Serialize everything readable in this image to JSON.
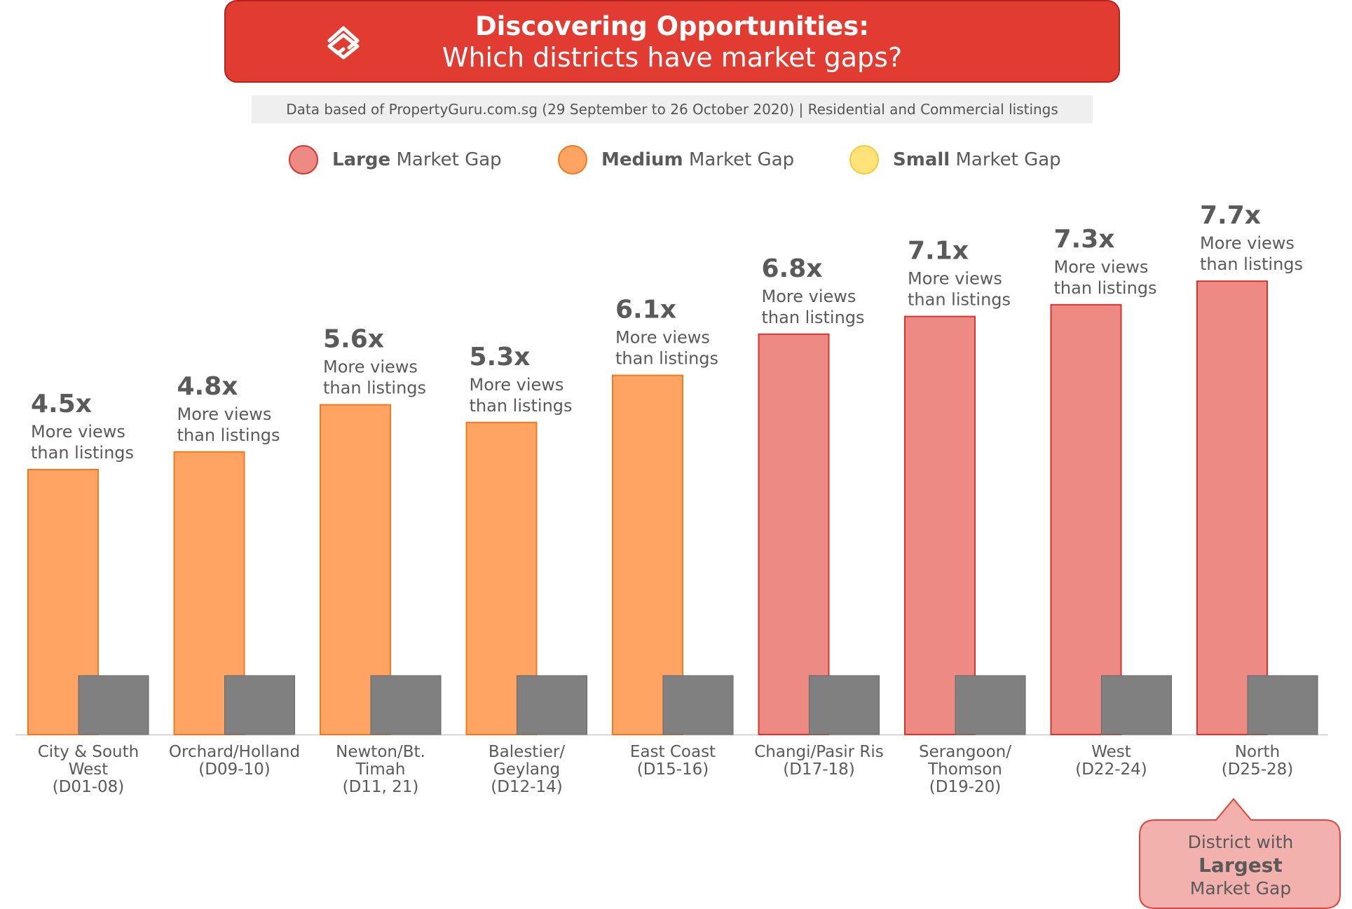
{
  "header": {
    "title": "Discovering Opportunities:",
    "subtitle": "Which districts have market gaps?",
    "logo_icon": "propertyguru-logo-icon",
    "color": "#e23c32"
  },
  "source_note": "Data based of PropertyGuru.com.sg (29 September to 26 October 2020) | Residential and Commercial listings",
  "legend": [
    {
      "strong": "Large",
      "rest": " Market Gap",
      "color": "#ee8a84"
    },
    {
      "strong": "Medium",
      "rest": " Market Gap",
      "color": "#ffa462"
    },
    {
      "strong": "Small",
      "rest": " Market Gap",
      "color": "#ffe27a"
    }
  ],
  "callout": {
    "line1": "District with",
    "line2": "Largest",
    "line3": "Market Gap"
  },
  "chart_data": {
    "type": "bar",
    "unit_suffix": "x",
    "value_caption": [
      "More views",
      "than listings"
    ],
    "categories": [
      [
        "City & South",
        "West",
        "(D01-08)"
      ],
      [
        "Orchard/Holland",
        "(D09-10)"
      ],
      [
        "Newton/Bt.",
        "Timah",
        "(D11, 21)"
      ],
      [
        "Balestier/",
        "Geylang",
        "(D12-14)"
      ],
      [
        "East Coast",
        "(D15-16)"
      ],
      [
        "Changi/Pasir Ris",
        "(D17-18)"
      ],
      [
        "Serangoon/",
        "Thomson",
        "(D19-20)"
      ],
      [
        "West",
        "(D22-24)"
      ],
      [
        "North",
        "(D25-28)"
      ]
    ],
    "series": [
      {
        "values": [
          4.5,
          4.8,
          5.6,
          5.3,
          6.1,
          6.8,
          7.1,
          7.3,
          7.7
        ],
        "gap": [
          "Medium",
          "Medium",
          "Medium",
          "Medium",
          "Medium",
          "Large",
          "Large",
          "Large",
          "Large"
        ]
      },
      {
        "values": [
          1,
          1,
          1,
          1,
          1,
          1,
          1,
          1,
          1
        ],
        "color": "#808080"
      }
    ],
    "ylim": [
      0,
      8
    ],
    "colors": {
      "Large": "#ee8a84",
      "Medium": "#ffa462",
      "Small": "#ffe27a",
      "baseline": "#808080"
    },
    "borders": {
      "Large": "#d9342b",
      "Medium": "#f07a22"
    },
    "grid": false,
    "legend_position": "top"
  }
}
